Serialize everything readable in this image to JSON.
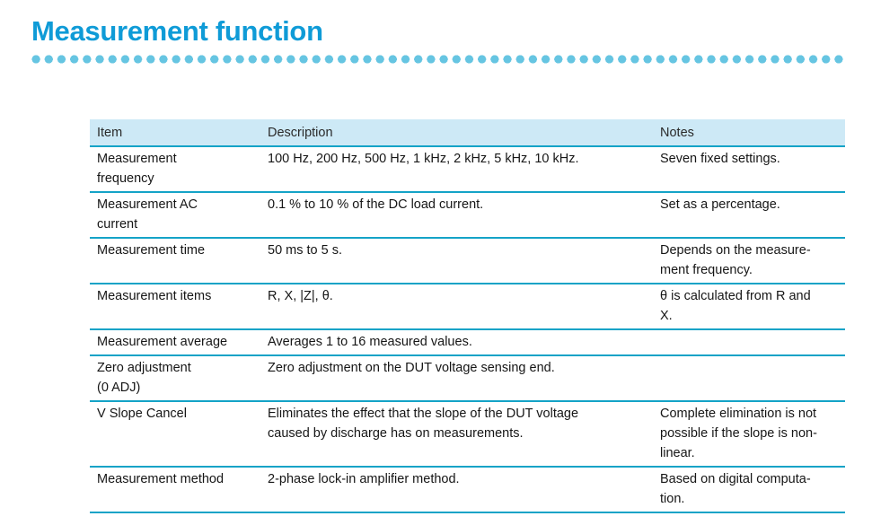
{
  "page": {
    "title": "Measurement function"
  },
  "table": {
    "columns": [
      "Item",
      "Description",
      "Notes"
    ],
    "rows": [
      {
        "item": "Measurement\nfrequency",
        "description": "100 Hz, 200 Hz, 500 Hz, 1 kHz, 2 kHz, 5 kHz, 10 kHz.",
        "notes": "Seven fixed settings."
      },
      {
        "item": "Measurement AC\ncurrent",
        "description": "0.1 % to 10 % of the DC load current.",
        "notes": "Set as a percentage."
      },
      {
        "item": "Measurement time",
        "description": "50 ms to 5 s.",
        "notes": "Depends on the measure-\nment frequency."
      },
      {
        "item": "Measurement items",
        "description": "R, X, |Z|, θ.",
        "notes": "θ is calculated from R and\nX."
      },
      {
        "item": "Measurement average",
        "description": "Averages 1 to 16 measured values.",
        "notes": ""
      },
      {
        "item": "Zero adjustment\n(0 ADJ)",
        "description": "Zero adjustment on the DUT voltage sensing end.",
        "notes": ""
      },
      {
        "item": "V Slope Cancel",
        "description": "Eliminates the effect that the slope of the DUT voltage\ncaused by discharge has on measurements.",
        "notes": "Complete elimination is not\npossible if the slope is non-\nlinear."
      },
      {
        "item": "Measurement method",
        "description": "2-phase lock-in amplifier method.",
        "notes": "Based on digital computa-\ntion."
      }
    ]
  },
  "colors": {
    "title": "#0f9bd7",
    "dots": "#66c5e2",
    "rule": "#14a3c7",
    "header_bg": "#cde9f6"
  }
}
